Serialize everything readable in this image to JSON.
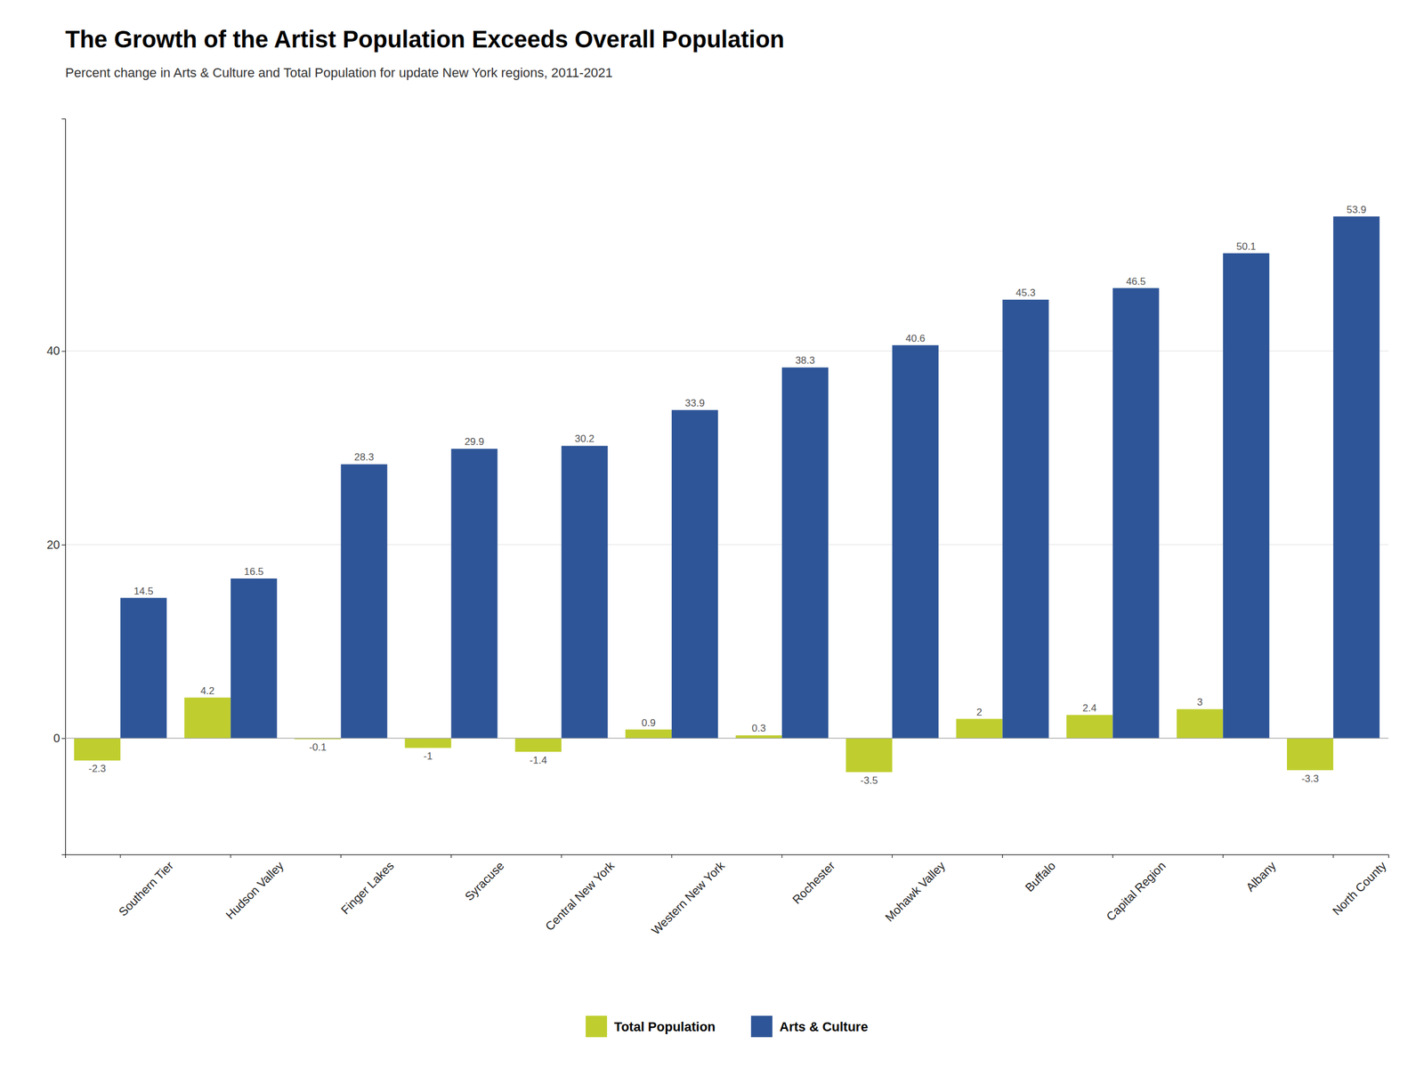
{
  "chart_data": {
    "type": "bar",
    "title": "The Growth of the Artist Population Exceeds Overall Population",
    "subtitle": "Percent change in Arts & Culture and Total Population for update New York regions, 2011-2021",
    "categories": [
      "Southern Tier",
      "Hudson Valley",
      "Finger Lakes",
      "Syracuse",
      "Central New York",
      "Western New York",
      "Rochester",
      "Mohawk Valley",
      "Buffalo",
      "Capital Region",
      "Albany",
      "North County"
    ],
    "series": [
      {
        "name": "Total Population",
        "color": "#BFCE2E",
        "values": [
          -2.3,
          4.2,
          -0.1,
          -1.0,
          -1.4,
          0.9,
          0.3,
          -3.5,
          2.0,
          2.4,
          3.0,
          -3.3
        ]
      },
      {
        "name": "Arts & Culture",
        "color": "#2E5597",
        "values": [
          14.5,
          16.5,
          28.3,
          29.9,
          30.2,
          33.9,
          38.3,
          40.6,
          45.3,
          46.5,
          50.1,
          53.9
        ]
      }
    ],
    "ylim": [
      -12,
      64
    ],
    "yticks": [
      0,
      20,
      40
    ],
    "grid": true,
    "legend": "bottom",
    "data_labels": true
  }
}
